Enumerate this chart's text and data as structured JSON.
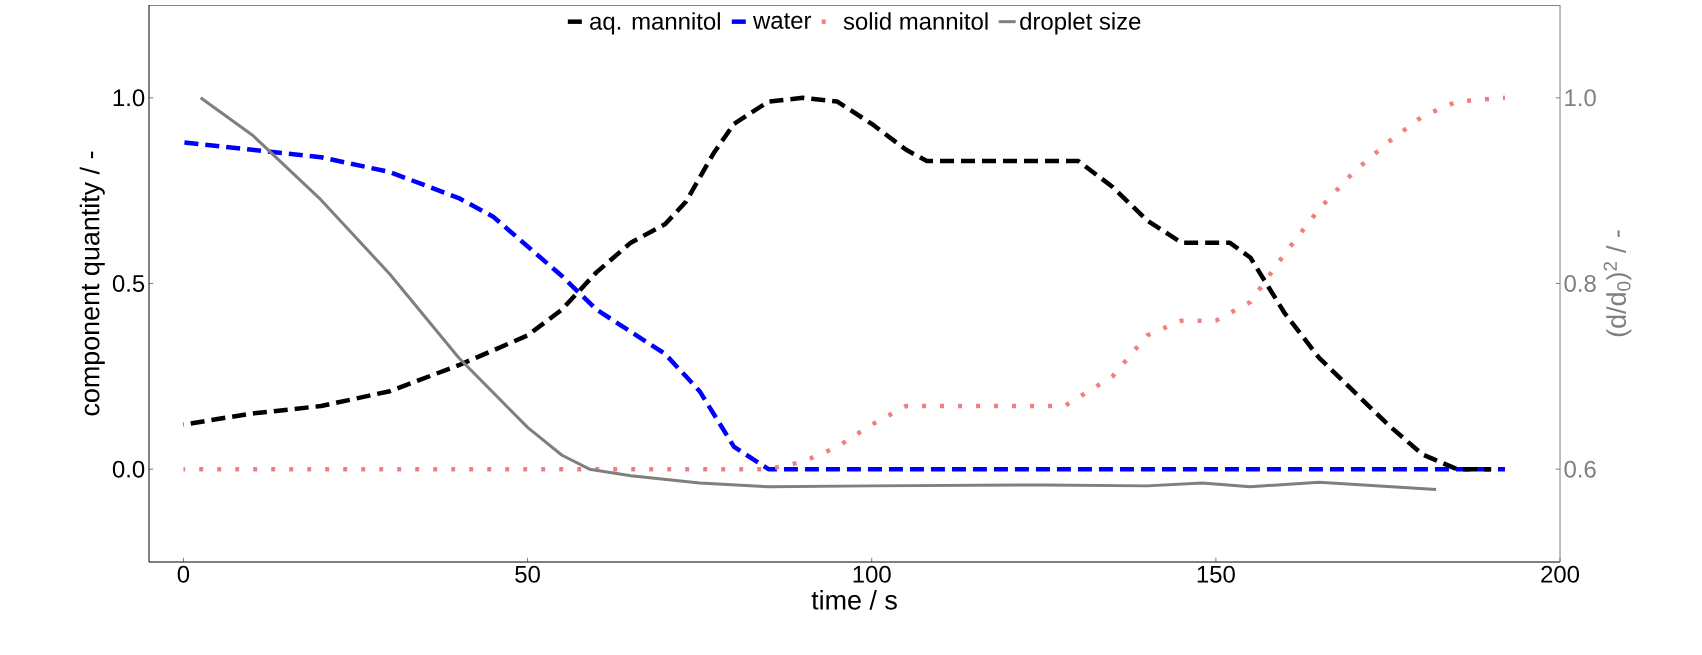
{
  "chart_data": {
    "type": "line",
    "xlabel": "time / s",
    "ylabel": "component quantity / -",
    "y2label": "(d/d$_{0}$)$^{2}$ / -",
    "xlim": [
      -5,
      200
    ],
    "xticks": [
      0,
      50,
      100,
      150,
      200
    ],
    "ylim": [
      -0.25,
      1.25
    ],
    "yticks": [
      {
        "value": 0,
        "label": "0.0"
      },
      {
        "value": 0.5,
        "label": "0.5"
      },
      {
        "value": 1,
        "label": "1.0"
      }
    ],
    "y2lim": [
      0.5,
      1.1
    ],
    "y2ticks": [
      {
        "value": 0.6,
        "label": "0.6"
      },
      {
        "value": 0.8,
        "label": "0.8"
      },
      {
        "value": 1,
        "label": "1.0"
      }
    ],
    "legend": "top",
    "series": [
      {
        "name": "aq. mannitol",
        "color": "#000000",
        "line_style": "dashed",
        "x": [
          0,
          10,
          20,
          30,
          40,
          50,
          55,
          60,
          65,
          70,
          73,
          77,
          80,
          85,
          90,
          95,
          100,
          105,
          108,
          130,
          135,
          140,
          145,
          152,
          155,
          160,
          165,
          170,
          175,
          180,
          185,
          190
        ],
        "values": [
          0.12,
          0.15,
          0.17,
          0.21,
          0.28,
          0.36,
          0.43,
          0.53,
          0.61,
          0.66,
          0.72,
          0.85,
          0.93,
          0.99,
          1.0,
          0.99,
          0.93,
          0.86,
          0.83,
          0.83,
          0.76,
          0.67,
          0.61,
          0.61,
          0.57,
          0.42,
          0.3,
          0.21,
          0.12,
          0.04,
          0.0,
          0.0
        ]
      },
      {
        "name": "water",
        "color": "#0000ff",
        "line_style": "dashed",
        "x": [
          0,
          10,
          20,
          30,
          40,
          45,
          50,
          55,
          60,
          65,
          70,
          75,
          80,
          85,
          192
        ],
        "values": [
          0.88,
          0.86,
          0.84,
          0.8,
          0.73,
          0.68,
          0.6,
          0.52,
          0.43,
          0.37,
          0.31,
          0.21,
          0.06,
          0.0,
          0.0
        ]
      },
      {
        "name": "solid mannitol",
        "color": "#f08080",
        "line_style": "dotted",
        "x": [
          0,
          85,
          90,
          95,
          100,
          105,
          110,
          128,
          135,
          140,
          145,
          150,
          155,
          160,
          165,
          170,
          175,
          180,
          185,
          192
        ],
        "values": [
          0,
          0,
          0.02,
          0.06,
          0.12,
          0.17,
          0.17,
          0.17,
          0.25,
          0.36,
          0.4,
          0.4,
          0.45,
          0.58,
          0.7,
          0.8,
          0.88,
          0.95,
          0.99,
          1.0
        ]
      },
      {
        "name": "droplet size",
        "color": "#7f7f7f",
        "line_style": "solid",
        "axis": "y2",
        "x": [
          2.5,
          10,
          20,
          30,
          40,
          50,
          55,
          59,
          65,
          75,
          85,
          100,
          125,
          140,
          148,
          155,
          165,
          182
        ],
        "values": [
          1.0,
          0.96,
          0.89,
          0.81,
          0.72,
          0.645,
          0.615,
          0.6,
          0.593,
          0.585,
          0.581,
          0.582,
          0.583,
          0.582,
          0.585,
          0.581,
          0.586,
          0.578
        ]
      }
    ]
  }
}
